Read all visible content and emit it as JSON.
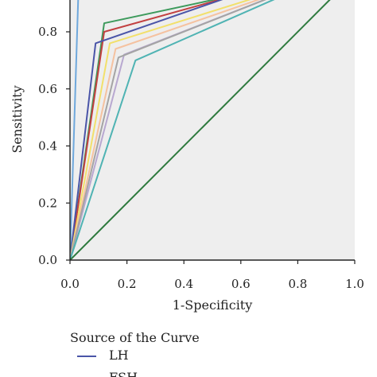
{
  "chart_data": {
    "type": "line",
    "title": "",
    "xlabel": "1-Specificity",
    "ylabel": "Sensitivity",
    "xlim": [
      0,
      1
    ],
    "ylim": [
      0,
      0.95
    ],
    "x_ticks": [
      "0.0",
      "0.2",
      "0.4",
      "0.6",
      "0.8",
      "1.0"
    ],
    "y_ticks": [
      "0.0",
      "0.2",
      "0.4",
      "0.6",
      "0.8"
    ],
    "grid": false,
    "background": "#eeeeee",
    "legend": {
      "title": "Source of the Curve",
      "placement": "bottom",
      "entries": [
        {
          "label": "LH",
          "color": "#4a55a8"
        },
        {
          "label": "FSH",
          "color": "#c24040"
        }
      ]
    },
    "series": [
      {
        "color": "#6fa8dc",
        "points": [
          [
            0,
            0
          ],
          [
            0.03,
            0.95
          ]
        ]
      },
      {
        "color": "#3d9a5c",
        "points": [
          [
            0,
            0
          ],
          [
            0.12,
            0.83
          ],
          [
            0.68,
            0.95
          ]
        ]
      },
      {
        "color": "#c24040",
        "points": [
          [
            0,
            0
          ],
          [
            0.12,
            0.8
          ],
          [
            0.66,
            0.95
          ]
        ]
      },
      {
        "color": "#4a55a8",
        "points": [
          [
            0,
            0
          ],
          [
            0.09,
            0.76
          ],
          [
            0.64,
            0.95
          ]
        ]
      },
      {
        "color": "#f2e06b",
        "points": [
          [
            0,
            0
          ],
          [
            0.14,
            0.76
          ],
          [
            0.75,
            0.95
          ]
        ]
      },
      {
        "color": "#f5c2a0",
        "points": [
          [
            0,
            0
          ],
          [
            0.16,
            0.74
          ],
          [
            0.77,
            0.95
          ]
        ]
      },
      {
        "color": "#b8a8d0",
        "points": [
          [
            0,
            0
          ],
          [
            0.19,
            0.72
          ],
          [
            0.78,
            0.95
          ]
        ]
      },
      {
        "color": "#a4a4a4",
        "points": [
          [
            0,
            0
          ],
          [
            0.17,
            0.71
          ],
          [
            0.78,
            0.95
          ]
        ]
      },
      {
        "color": "#4fb3b3",
        "points": [
          [
            0,
            0
          ],
          [
            0.23,
            0.7
          ],
          [
            0.8,
            0.95
          ]
        ]
      },
      {
        "color": "#2e7a3e",
        "points": [
          [
            0,
            0
          ],
          [
            0.92,
            0.92
          ],
          [
            0.95,
            0.95
          ]
        ]
      }
    ]
  }
}
